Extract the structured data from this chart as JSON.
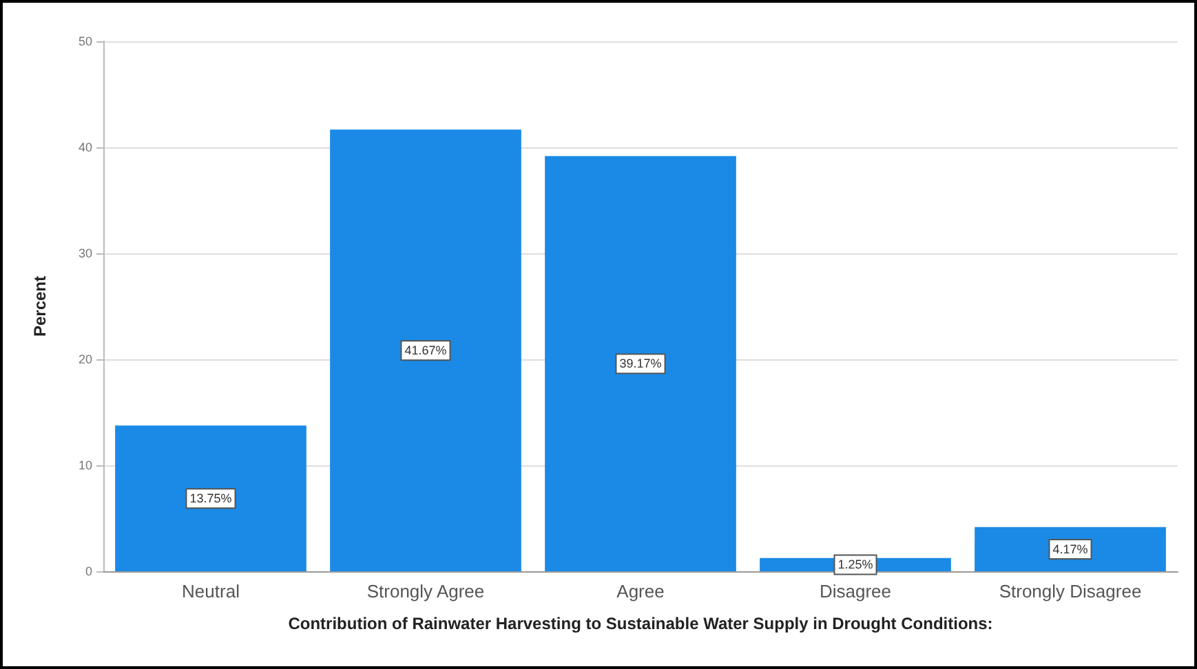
{
  "chart_data": {
    "type": "bar",
    "xlabel": "Contribution of Rainwater Harvesting to Sustainable Water Supply in Drought Conditions:",
    "ylabel": "Percent",
    "categories": [
      "Neutral",
      "Strongly Agree",
      "Agree",
      "Disagree",
      "Strongly Disagree"
    ],
    "values": [
      13.75,
      41.67,
      39.17,
      1.25,
      4.17
    ],
    "value_labels": [
      "13.75%",
      "41.67%",
      "39.17%",
      "1.25%",
      "4.17%"
    ],
    "color": "#1a8ae6",
    "ylim": [
      0,
      50
    ],
    "yticks": [
      0,
      10,
      20,
      30,
      40,
      50
    ],
    "grid": "y"
  }
}
